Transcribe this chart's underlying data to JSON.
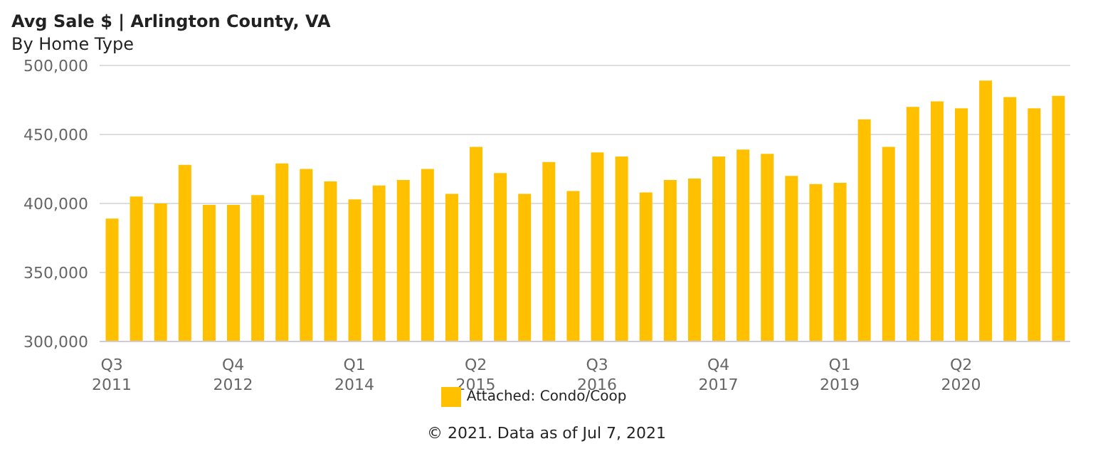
{
  "chart_data": {
    "type": "bar",
    "title": "Avg Sale $ | Arlington County, VA",
    "subtitle": "By Home Type",
    "categories": [
      "Q3 2011",
      null,
      null,
      null,
      null,
      "Q4 2012",
      null,
      null,
      null,
      null,
      "Q1 2014",
      null,
      null,
      null,
      null,
      "Q2 2015",
      null,
      null,
      null,
      null,
      "Q3 2016",
      null,
      null,
      null,
      null,
      "Q4 2017",
      null,
      null,
      null,
      null,
      "Q1 2019",
      null,
      null,
      null,
      null,
      "Q2 2020",
      null,
      null,
      null,
      null
    ],
    "series": [
      {
        "name": "Attached: Condo/Coop",
        "color": "#ffc000",
        "values": [
          389000,
          405000,
          400000,
          428000,
          399000,
          399000,
          406000,
          429000,
          425000,
          416000,
          403000,
          413000,
          417000,
          425000,
          407000,
          441000,
          422000,
          407000,
          430000,
          409000,
          437000,
          434000,
          408000,
          417000,
          418000,
          434000,
          439000,
          436000,
          420000,
          414000,
          415000,
          461000,
          441000,
          470000,
          474000,
          469000,
          489000,
          477000,
          469000,
          478000
        ]
      }
    ],
    "ylim": [
      300000,
      500000
    ],
    "yticks": [
      {
        "value": 300000,
        "label": "300,000"
      },
      {
        "value": 350000,
        "label": "350,000"
      },
      {
        "value": 400000,
        "label": "400,000"
      },
      {
        "value": 450000,
        "label": "450,000"
      },
      {
        "value": 500000,
        "label": "500,000"
      }
    ],
    "grid": "y",
    "legend": "bottom",
    "annotations": [
      "© 2021. Data as of Jul 7, 2021"
    ]
  }
}
